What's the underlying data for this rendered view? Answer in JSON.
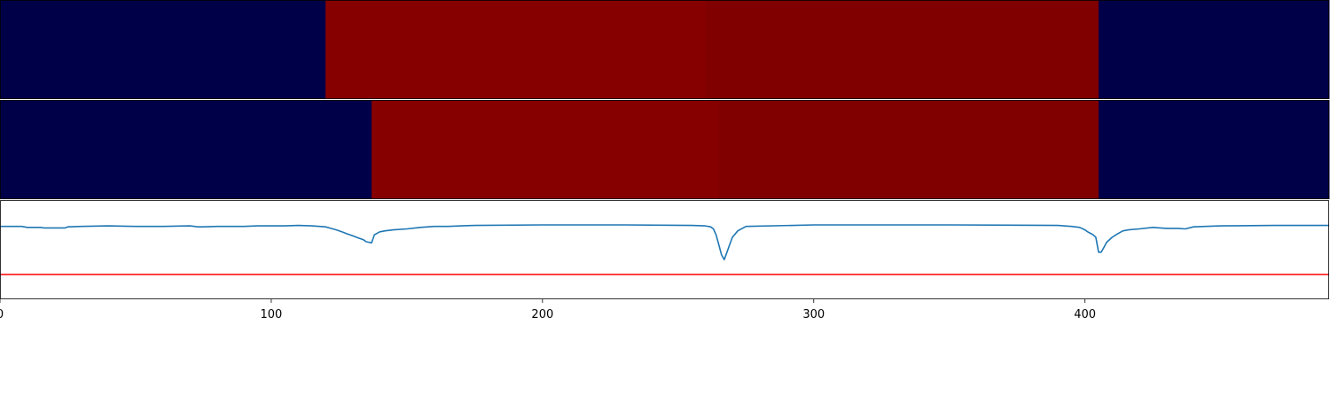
{
  "chart_data": {
    "type": "line",
    "xlim": [
      0,
      490
    ],
    "x_ticks": [
      {
        "value": 0,
        "label": "0"
      },
      {
        "value": 100,
        "label": "100"
      },
      {
        "value": 200,
        "label": "200"
      },
      {
        "value": 300,
        "label": "300"
      },
      {
        "value": 400,
        "label": "400"
      }
    ],
    "segment_rows": [
      {
        "segments": [
          {
            "start": 0,
            "end": 120,
            "color": "#000048"
          },
          {
            "start": 120,
            "end": 260,
            "color": "#870000"
          },
          {
            "start": 260,
            "end": 405,
            "color": "#800000"
          },
          {
            "start": 405,
            "end": 490,
            "color": "#000048"
          }
        ]
      },
      {
        "segments": [
          {
            "start": 0,
            "end": 137,
            "color": "#000048"
          },
          {
            "start": 137,
            "end": 265,
            "color": "#870000"
          },
          {
            "start": 265,
            "end": 405,
            "color": "#800000"
          },
          {
            "start": 405,
            "end": 490,
            "color": "#000048"
          }
        ]
      }
    ],
    "series": [
      {
        "color": "#1f77b4",
        "x": [
          0,
          8,
          10,
          15,
          16,
          24,
          25,
          30,
          40,
          50,
          60,
          70,
          73,
          75,
          80,
          85,
          90,
          95,
          100,
          105,
          110,
          115,
          120,
          122,
          124,
          126,
          128,
          130,
          132,
          134,
          135,
          136,
          137,
          138,
          140,
          142,
          145,
          150,
          155,
          160,
          165,
          170,
          175,
          200,
          230,
          255,
          260,
          262,
          263,
          264,
          265,
          266,
          267,
          268,
          269,
          270,
          272,
          275,
          300,
          350,
          390,
          395,
          398,
          400,
          401,
          402,
          403,
          404,
          405,
          406,
          407,
          408,
          410,
          412,
          414,
          416,
          420,
          425,
          430,
          434,
          437,
          440,
          450,
          470,
          490
        ],
        "y": [
          0.97,
          0.97,
          0.95,
          0.95,
          0.94,
          0.94,
          0.96,
          0.97,
          0.98,
          0.97,
          0.97,
          0.98,
          0.96,
          0.96,
          0.97,
          0.97,
          0.97,
          0.98,
          0.98,
          0.98,
          0.99,
          0.98,
          0.96,
          0.93,
          0.9,
          0.86,
          0.82,
          0.78,
          0.74,
          0.7,
          0.66,
          0.65,
          0.64,
          0.8,
          0.86,
          0.88,
          0.9,
          0.92,
          0.95,
          0.97,
          0.97,
          0.98,
          0.99,
          1.0,
          1.0,
          0.99,
          0.98,
          0.96,
          0.92,
          0.8,
          0.6,
          0.4,
          0.3,
          0.45,
          0.6,
          0.75,
          0.88,
          0.97,
          1.0,
          1.0,
          0.99,
          0.97,
          0.95,
          0.9,
          0.86,
          0.83,
          0.8,
          0.75,
          0.45,
          0.45,
          0.55,
          0.65,
          0.75,
          0.82,
          0.88,
          0.9,
          0.92,
          0.95,
          0.93,
          0.93,
          0.92,
          0.96,
          0.98,
          0.99,
          0.99
        ]
      }
    ],
    "threshold": {
      "value": 0.0,
      "color": "#ff0000"
    },
    "line_ylim": [
      -0.5,
      1.5
    ],
    "grid": false
  }
}
